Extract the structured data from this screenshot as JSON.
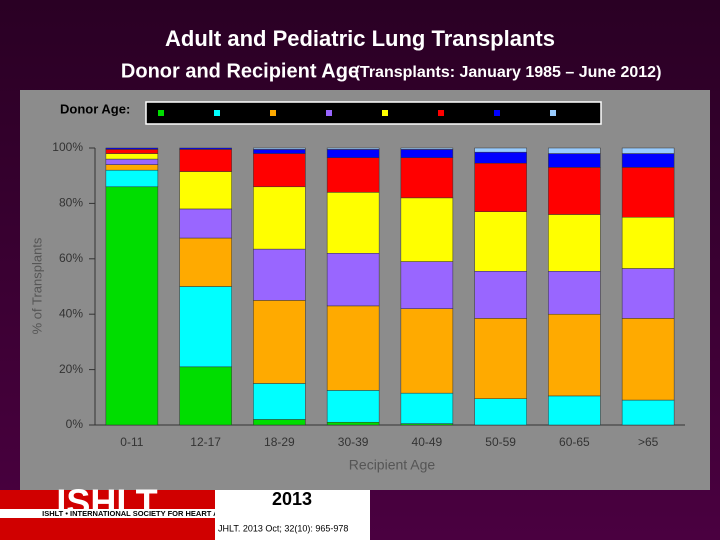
{
  "chart_data": {
    "type": "stacked_bar",
    "title": "Adult and Pediatric Lung Transplants",
    "subtitle": "Donor and Recipient Age",
    "subtitle_note": "(Transplants: January 1985 – June 2012)",
    "legend_title": "Donor Age:",
    "y_label": "% of Transplants",
    "x_label": "Recipient Age",
    "categories": [
      "0-11",
      "12-17",
      "18-29",
      "30-39",
      "40-49",
      "50-59",
      "60-65",
      ">65"
    ],
    "series": [
      {
        "color": "#00dd00",
        "values": [
          86,
          21,
          2,
          1,
          0.5,
          0,
          0,
          0
        ]
      },
      {
        "color": "#00ffff",
        "values": [
          6,
          29,
          13,
          11.5,
          11,
          9.5,
          10.5,
          9
        ]
      },
      {
        "color": "#ffaa00",
        "values": [
          2,
          17.5,
          30,
          30.5,
          30.5,
          29,
          29.5,
          29.5
        ]
      },
      {
        "color": "#9966ff",
        "values": [
          2,
          10.5,
          18.5,
          19,
          17,
          17,
          15.5,
          18
        ]
      },
      {
        "color": "#ffff00",
        "values": [
          2,
          13.5,
          22.5,
          22,
          23,
          21.5,
          20.5,
          18.5
        ]
      },
      {
        "color": "#ff0000",
        "values": [
          1.5,
          8,
          12,
          12.5,
          14.5,
          17.5,
          17,
          18
        ]
      },
      {
        "color": "#0000ff",
        "values": [
          0.5,
          0.5,
          1.5,
          3,
          3,
          4,
          5,
          5
        ]
      },
      {
        "color": "#99ccff",
        "values": [
          0,
          0,
          0.5,
          0.5,
          0.5,
          1.5,
          2,
          2
        ]
      }
    ],
    "ylim": [
      0,
      100
    ],
    "yticks": [
      {
        "value": 0,
        "label": "0%"
      },
      {
        "value": 20,
        "label": "20%"
      },
      {
        "value": 40,
        "label": "40%"
      },
      {
        "value": 60,
        "label": "60%"
      },
      {
        "value": 80,
        "label": "80%"
      },
      {
        "value": 100,
        "label": "100%"
      }
    ],
    "grid": false
  },
  "footer": {
    "logo": "ISHLT",
    "society": "ISHLT • INTERNATIONAL SOCIETY FOR HEART AND LUNG TRANSPLANTATION",
    "year": "2013",
    "citation": "JHLT. 2013 Oct; 32(10): 965-978"
  }
}
